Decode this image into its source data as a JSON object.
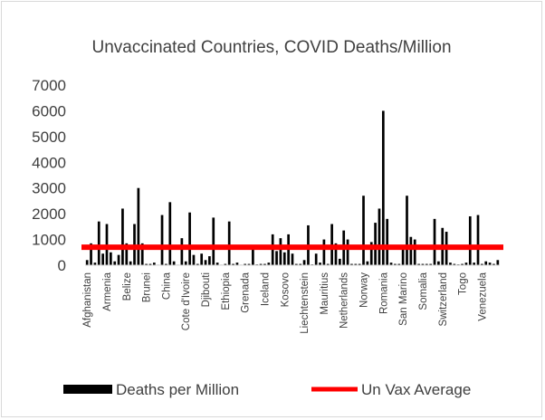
{
  "chart_data": {
    "type": "bar",
    "title": "Unvaccinated Countries, COVID Deaths/Million",
    "ylim": [
      0,
      7000
    ],
    "yticks": [
      0,
      1000,
      2000,
      3000,
      4000,
      5000,
      6000,
      7000
    ],
    "grid": false,
    "legend_position": "bottom",
    "x_tick_labels": [
      "Afghanistan",
      "Armenia",
      "Belize",
      "Brunei",
      "China",
      "Cote d'Ivoire",
      "Djibouti",
      "Ethiopia",
      "Grenada",
      "Iceland",
      "Kosovo",
      "Liechtenstein",
      "Mauritius",
      "Netherlands",
      "Norway",
      "Romania",
      "San Marino",
      "Somalia",
      "Switzerland",
      "Togo",
      "Venezuela"
    ],
    "series": [
      {
        "name": "Deaths per Million",
        "color": "#000000",
        "values": [
          200,
          850,
          100,
          1700,
          450,
          1600,
          500,
          150,
          400,
          2200,
          850,
          150,
          1600,
          3000,
          850,
          50,
          50,
          100,
          20,
          1950,
          50,
          2450,
          150,
          20,
          1050,
          150,
          2050,
          400,
          50,
          450,
          200,
          350,
          1850,
          100,
          20,
          50,
          1700,
          50,
          100,
          20,
          50,
          50,
          650,
          30,
          50,
          50,
          100,
          1200,
          550,
          1050,
          500,
          1200,
          450,
          50,
          50,
          200,
          1550,
          30,
          450,
          100,
          1000,
          50,
          1600,
          850,
          250,
          1350,
          1000,
          50,
          50,
          50,
          2700,
          150,
          900,
          1650,
          2200,
          6000,
          1800,
          100,
          50,
          50,
          650,
          2700,
          1100,
          1000,
          50,
          50,
          50,
          50,
          1800,
          150,
          1450,
          1300,
          100,
          50,
          30,
          50,
          100,
          1900,
          100,
          1950,
          50,
          150,
          100,
          50,
          200
        ]
      },
      {
        "name": "Un Vax Average",
        "type": "line",
        "color": "#ff0000",
        "value": 700
      }
    ]
  }
}
